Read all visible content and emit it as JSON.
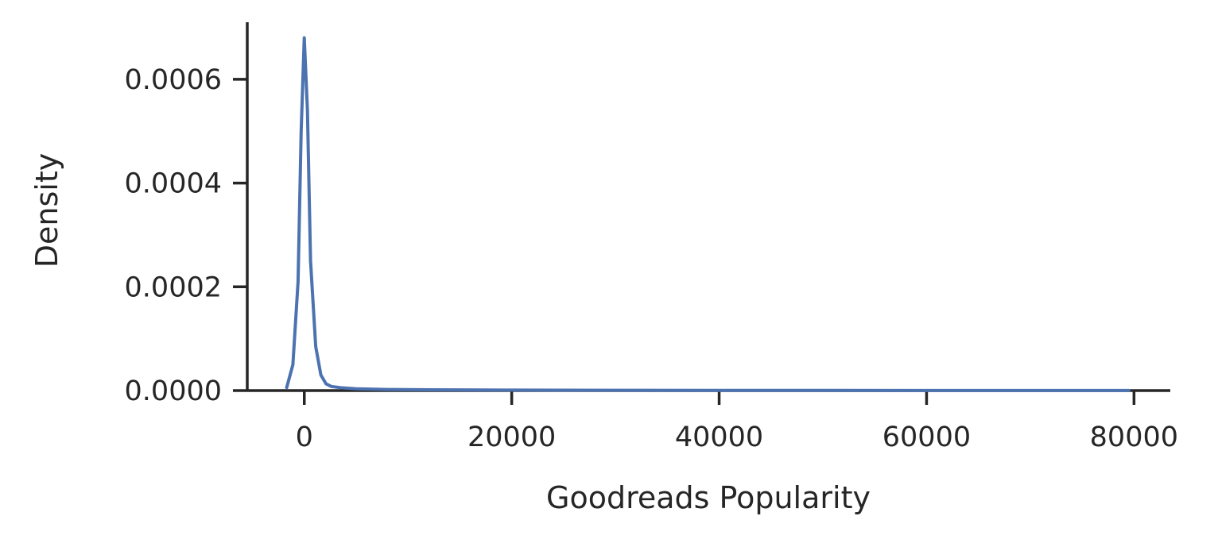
{
  "chart_data": {
    "type": "line",
    "title": "",
    "xlabel": "Goodreads Popularity",
    "ylabel": "Density",
    "xlim": [
      -5500,
      83500
    ],
    "ylim": [
      0,
      0.00071
    ],
    "x_ticks": [
      0,
      20000,
      40000,
      60000,
      80000
    ],
    "x_tick_labels": [
      "0",
      "20000",
      "40000",
      "60000",
      "80000"
    ],
    "y_ticks": [
      0,
      0.0002,
      0.0004,
      0.0006
    ],
    "y_tick_labels": [
      "0.0000",
      "0.0002",
      "0.0004",
      "0.0006"
    ],
    "grid": false,
    "legend": "none",
    "colors": {
      "line": "#4c72b0",
      "axis": "#262626"
    },
    "series": [
      {
        "x": [
          -1700,
          -1100,
          -600,
          -300,
          0,
          300,
          600,
          1100,
          1600,
          2100,
          2600,
          3500,
          5000,
          8000,
          12000,
          20000,
          30000,
          40000,
          50000,
          60000,
          70000,
          79500
        ],
        "y": [
          5.8e-06,
          5e-05,
          0.00021,
          0.0005,
          0.00068,
          0.00054,
          0.00025,
          8.5e-05,
          3e-05,
          1.3e-05,
          8e-06,
          5.5e-06,
          3.5e-06,
          2.2e-06,
          1.5e-06,
          9e-07,
          6e-07,
          4e-07,
          3e-07,
          2e-07,
          2e-07,
          2e-07
        ]
      }
    ]
  }
}
